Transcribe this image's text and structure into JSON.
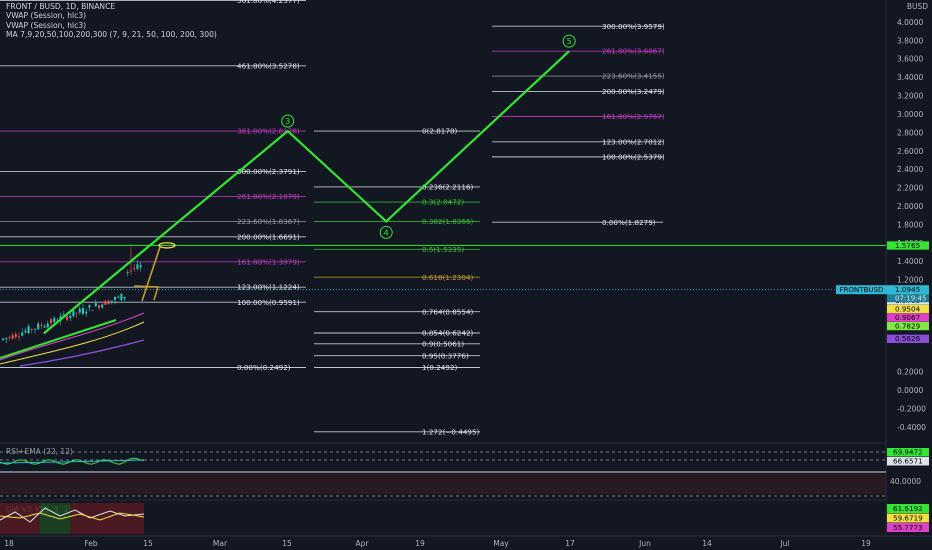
{
  "colors": {
    "background": "#131722",
    "wave": "#33e633",
    "pink": "#c23bc2",
    "orange_line": "#c89c2c",
    "green_level": "#33e633",
    "cyan": "#2eb8d6"
  },
  "legend": {
    "symbol": "FRONT / BUSD, 1D, BINANCE",
    "vwap1": "VWAP (Session, hlc3)",
    "vwap2": "VWAP (Session, hlc3)",
    "ma": "MA 7,9,20,50,100,200,300 (7, 9, 21, 50, 100, 200, 300)"
  },
  "chart_data": {
    "type": "line",
    "title": "FRONT / BUSD, 1D, BINANCE",
    "y_unit": "BUSD",
    "y_ticks": [
      "4.0000",
      "3.8000",
      "3.6000",
      "3.4000",
      "3.2000",
      "3.0000",
      "2.8000",
      "2.6000",
      "2.4000",
      "2.2000",
      "2.0000",
      "1.8000",
      "1.6000",
      "1.4000",
      "1.2000",
      "0.2000",
      "0.0000",
      "-0.2000",
      "-0.4000"
    ],
    "y_ticks_values": [
      4.0,
      3.8,
      3.6,
      3.4,
      3.2,
      3.0,
      2.8,
      2.6,
      2.4,
      2.2,
      2.0,
      1.8,
      1.6,
      1.4,
      1.2,
      0.2,
      0.0,
      -0.2,
      -0.4
    ],
    "x_ticks": [
      "18",
      "Feb",
      "15",
      "Mar",
      "15",
      "Apr",
      "19",
      "May",
      "17",
      "Jun",
      "14",
      "Jul",
      "19"
    ],
    "current_price_label": "1.0945",
    "ticker_tag": "FRONTBUSD",
    "countdown": "07:19:45",
    "price_tags": [
      {
        "text": "1.5765",
        "value": 1.5765,
        "color": "#33e633",
        "text_color": "#000000"
      },
      {
        "text": "1.0705",
        "value": 1.0705,
        "color": "#e0e3eb",
        "text_color": "#000000"
      },
      {
        "text": "1.0705",
        "value": 1.0705,
        "color": "#e0e3eb",
        "text_color": "#000000"
      },
      {
        "text": "0.9504",
        "value": 0.9504,
        "color": "#f0e040",
        "text_color": "#000000"
      },
      {
        "text": "0.9067",
        "value": 0.9067,
        "color": "#e040c8",
        "text_color": "#000000"
      },
      {
        "text": "0.7829",
        "value": 0.7829,
        "color": "#80e840",
        "text_color": "#000000"
      },
      {
        "text": "0.5626",
        "value": 0.5626,
        "color": "#8a4fd8",
        "text_color": "#000000"
      }
    ],
    "fib_group_1": [
      {
        "text": "561.80%(4.2377)",
        "value": 4.2377,
        "color": "#e0e3eb"
      },
      {
        "text": "461.80%(3.5278)",
        "value": 3.5278,
        "color": "#e0e3eb"
      },
      {
        "text": "361.80%(2.8178)",
        "value": 2.8178,
        "color": "#c23bc2"
      },
      {
        "text": "300.00%(2.3791)",
        "value": 2.3791,
        "color": "#e0e3eb"
      },
      {
        "text": "261.80%(2.1079)",
        "value": 2.1079,
        "color": "#c23bc2"
      },
      {
        "text": "223.60%(1.8367)",
        "value": 1.8367,
        "color": "#9598a1"
      },
      {
        "text": "200.00%(1.6691)",
        "value": 1.6691,
        "color": "#e0e3eb"
      },
      {
        "text": "161.80%(1.3979)",
        "value": 1.3979,
        "color": "#c23bc2"
      },
      {
        "text": "123.00%(1.1224)",
        "value": 1.1224,
        "color": "#e0e3eb"
      },
      {
        "text": "100.00%(0.9591)",
        "value": 0.9591,
        "color": "#e0e3eb"
      },
      {
        "text": "0.00%(0.2492)",
        "value": 0.2492,
        "color": "#e0e3eb"
      }
    ],
    "fib_group_2": [
      {
        "text": "0(2.8178)",
        "value": 2.8178,
        "color": "#e0e3eb"
      },
      {
        "text": "0.236(2.2116)",
        "value": 2.2116,
        "color": "#e0e3eb"
      },
      {
        "text": "0.3(2.0472)",
        "value": 2.0472,
        "color": "#33c633"
      },
      {
        "text": "0.382(1.8366)",
        "value": 1.8366,
        "color": "#33c633"
      },
      {
        "text": "0.5(1.5335)",
        "value": 1.5335,
        "color": "#33c633"
      },
      {
        "text": "0.618(1.2304)",
        "value": 1.2304,
        "color": "#c89c2c"
      },
      {
        "text": "0.764(0.8554)",
        "value": 0.8554,
        "color": "#e0e3eb"
      },
      {
        "text": "0.854(0.6242)",
        "value": 0.6242,
        "color": "#e0e3eb"
      },
      {
        "text": "0.9(0.5061)",
        "value": 0.5061,
        "color": "#e0e3eb"
      },
      {
        "text": "0.95(0.3776)",
        "value": 0.3776,
        "color": "#e0e3eb"
      },
      {
        "text": "1(0.2492)",
        "value": 0.2492,
        "color": "#e0e3eb"
      },
      {
        "text": "1.272(−0.4495)",
        "value": -0.4495,
        "color": "#e0e3eb"
      }
    ],
    "fib_group_3": [
      {
        "text": "300.00%(3.9579)",
        "value": 3.9579,
        "color": "#e0e3eb"
      },
      {
        "text": "261.80%(3.6867)",
        "value": 3.6867,
        "color": "#c23bc2"
      },
      {
        "text": "223.60%(3.4155)",
        "value": 3.4155,
        "color": "#9598a1"
      },
      {
        "text": "200.00%(3.2479)",
        "value": 3.2479,
        "color": "#e0e3eb"
      },
      {
        "text": "161.80%(2.9767)",
        "value": 2.9767,
        "color": "#c23bc2"
      },
      {
        "text": "123.00%(2.7012)",
        "value": 2.7012,
        "color": "#e0e3eb"
      },
      {
        "text": "100.00%(2.5379)",
        "value": 2.5379,
        "color": "#e0e3eb"
      },
      {
        "text": "0.00%(1.8279)",
        "value": 1.8279,
        "color": "#e0e3eb"
      }
    ],
    "wave_labels": [
      "3",
      "4",
      "5"
    ],
    "wave_points": [
      {
        "date": "Jan 08",
        "value": 0.62
      },
      {
        "date": "Mar 01",
        "value": 2.8178
      },
      {
        "date": "Mar 22",
        "value": 1.8366
      },
      {
        "date": "Apr 30",
        "value": 3.6867
      }
    ],
    "projection_value": 1.5765,
    "rsi_panel": {
      "label": "RSI+EMA (22, 12)",
      "tick": "40.0000",
      "tags": [
        {
          "text": "69.9472",
          "color": "#33e633"
        },
        {
          "text": "66.6571",
          "color": "#e0e3eb"
        }
      ]
    },
    "kdj_panel": {
      "label": "GM_V2_KDJ (9, 3)",
      "tags": [
        {
          "text": "61.6192",
          "color": "#33e633"
        },
        {
          "text": "59.6719",
          "color": "#f0e040"
        },
        {
          "text": "55.7773",
          "color": "#e040c8"
        }
      ]
    }
  }
}
